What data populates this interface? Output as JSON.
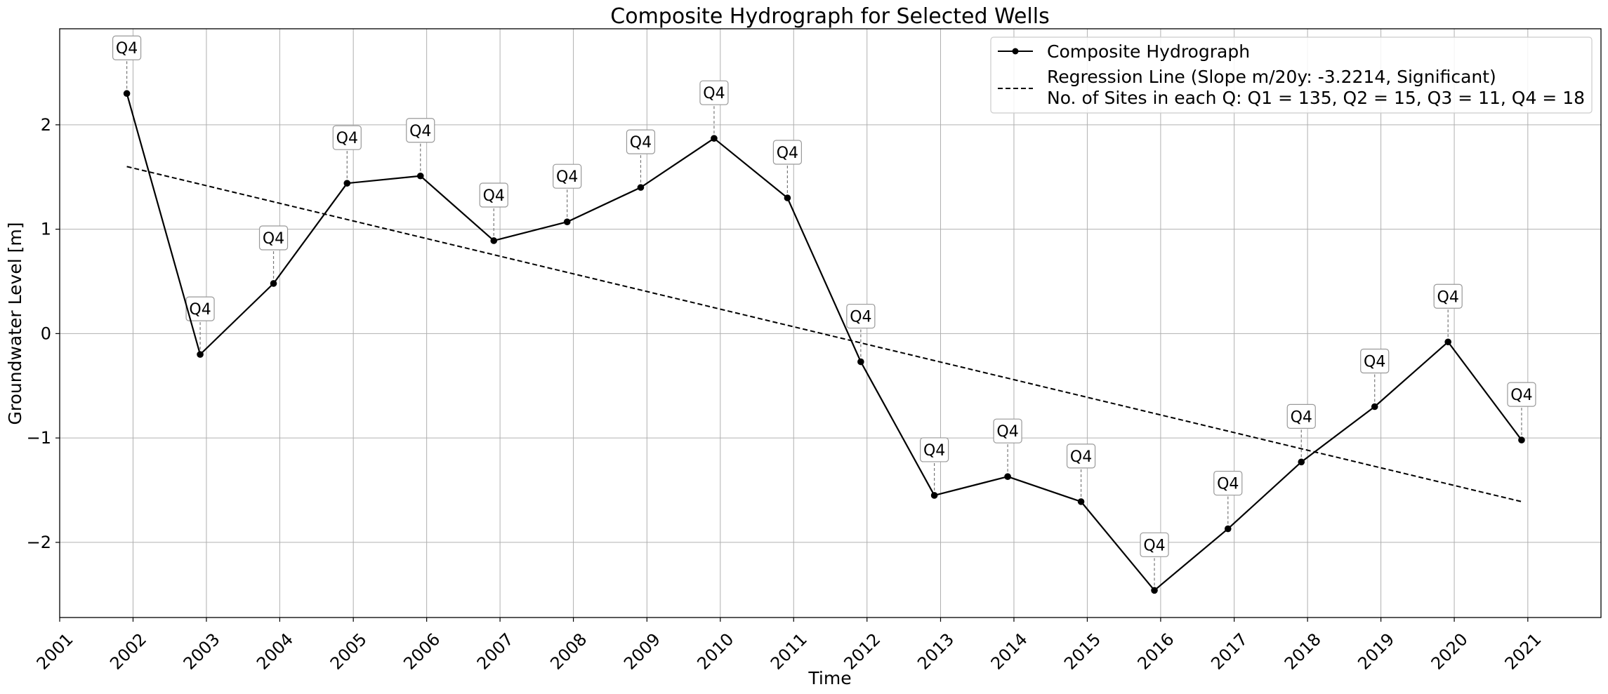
{
  "chart_data": {
    "type": "line",
    "title": "Composite Hydrograph for Selected Wells",
    "xlabel": "Time",
    "ylabel": "Groundwater Level [m]",
    "xlim": [
      "2001-01-01",
      "2021-12-31"
    ],
    "ylim": [
      -2.72,
      2.92
    ],
    "x_ticks": [
      "2001",
      "2002",
      "2003",
      "2004",
      "2005",
      "2006",
      "2007",
      "2008",
      "2009",
      "2010",
      "2011",
      "2012",
      "2013",
      "2014",
      "2015",
      "2016",
      "2017",
      "2018",
      "2019",
      "2020",
      "2021"
    ],
    "y_ticks": [
      -2,
      -1,
      0,
      1,
      2
    ],
    "y_tick_labels": [
      "−2",
      "−1",
      "0",
      "1",
      "2"
    ],
    "grid": true,
    "legend_position": "top-right",
    "series": [
      {
        "name": "Composite Hydrograph",
        "color": "#000000",
        "style": "solid-with-markers",
        "x": [
          "2001-12-01",
          "2002-12-01",
          "2003-12-01",
          "2004-12-01",
          "2005-12-01",
          "2006-12-01",
          "2007-12-01",
          "2008-12-01",
          "2009-12-01",
          "2010-12-01",
          "2011-12-01",
          "2012-12-01",
          "2013-12-01",
          "2014-12-01",
          "2015-12-01",
          "2016-12-01",
          "2017-12-01",
          "2018-12-01",
          "2019-12-01",
          "2020-12-01"
        ],
        "values": [
          2.3,
          -0.2,
          0.48,
          1.44,
          1.51,
          0.89,
          1.07,
          1.4,
          1.87,
          1.3,
          -0.27,
          -1.55,
          -1.37,
          -1.61,
          -2.46,
          -1.87,
          -1.23,
          -0.7,
          -0.08,
          -1.02
        ],
        "annotations": [
          "Q4",
          "Q4",
          "Q4",
          "Q4",
          "Q4",
          "Q4",
          "Q4",
          "Q4",
          "Q4",
          "Q4",
          "Q4",
          "Q4",
          "Q4",
          "Q4",
          "Q4",
          "Q4",
          "Q4",
          "Q4",
          "Q4",
          "Q4"
        ]
      },
      {
        "name": "Regression Line (Slope m/20y: -3.2214, Significant)",
        "color": "#000000",
        "style": "dashed",
        "x": [
          "2001-12-01",
          "2020-12-01"
        ],
        "values": [
          1.6,
          -1.61
        ]
      }
    ],
    "legend_extra_line": "No. of Sites in each Q: Q1 = 135, Q2 = 15, Q3 = 11, Q4 = 18"
  }
}
